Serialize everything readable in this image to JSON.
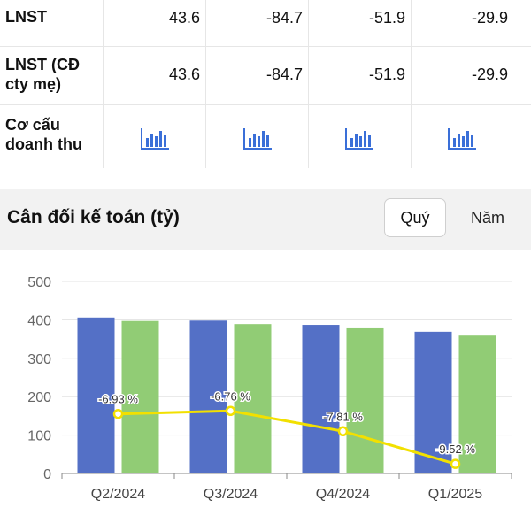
{
  "table": {
    "rows": [
      {
        "label": "LNST",
        "values": [
          "43.6",
          "-84.7",
          "-51.9",
          "-29.9"
        ]
      },
      {
        "label_lines": [
          "LNST (CĐ",
          "cty mẹ)"
        ],
        "values": [
          "43.6",
          "-84.7",
          "-51.9",
          "-29.9"
        ]
      },
      {
        "label_lines": [
          "Cơ cấu",
          "doanh thu"
        ],
        "icon": "bar-chart-icon"
      }
    ]
  },
  "section": {
    "title": "Cân đối kế toán (tỷ)",
    "period_buttons": {
      "quarter": "Quý",
      "year": "Năm"
    },
    "selected": "quarter"
  },
  "colors": {
    "series_blue": "#5470c6",
    "series_green": "#91cc75",
    "line_yellow": "#f2e000",
    "icon_blue": "#3a6fd8"
  },
  "chart_data": {
    "type": "bar",
    "categories": [
      "Q2/2024",
      "Q3/2024",
      "Q4/2024",
      "Q1/2025"
    ],
    "series": [
      {
        "values": [
          406,
          398,
          387,
          369
        ]
      },
      {
        "values": [
          397,
          389,
          378,
          359
        ]
      }
    ],
    "line_series": {
      "labels": [
        "-6.93 %",
        "-6.76 %",
        "-7.81 %",
        "-9.52 %"
      ],
      "plot_values": [
        155,
        163,
        110,
        25
      ]
    },
    "ylim": [
      0,
      500
    ],
    "y_ticks": [
      "0",
      "100",
      "200",
      "300",
      "400",
      "500"
    ],
    "grid": true,
    "legend": "none"
  }
}
